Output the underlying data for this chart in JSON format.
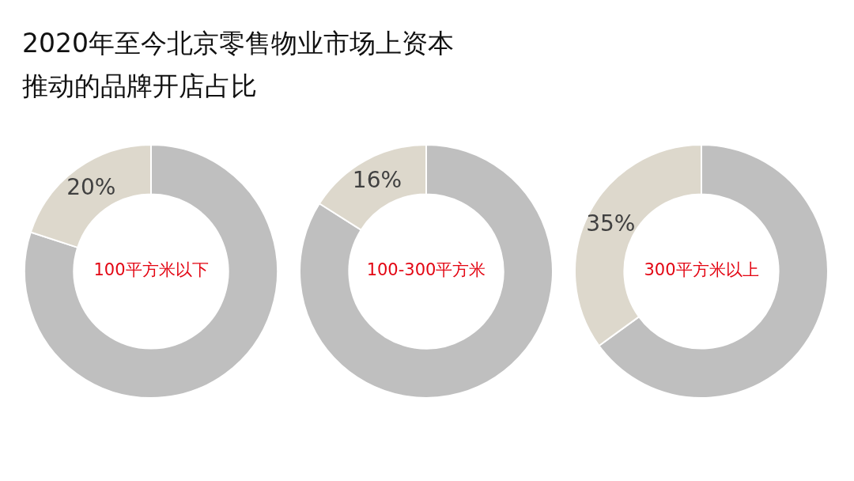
{
  "chart_data": [
    {
      "type": "other",
      "title": "2020年至今北京零售物业市场上资本推动的品牌开店占比"
    },
    {
      "type": "donut",
      "title": "100平方米以下",
      "categories": [
        null,
        null
      ],
      "values": [
        80,
        20
      ],
      "colors": [
        "#bfbfbf",
        "#ddd8cc"
      ],
      "value_labels": [
        null,
        "20%"
      ]
    },
    {
      "type": "donut",
      "title": "100-300平方米",
      "categories": [
        null,
        null
      ],
      "values": [
        84,
        16
      ],
      "colors": [
        "#bfbfbf",
        "#ddd8cc"
      ],
      "value_labels": [
        null,
        "16%"
      ]
    },
    {
      "type": "donut",
      "title": "300平方米以上",
      "categories": [
        null,
        null
      ],
      "values": [
        65,
        35
      ],
      "colors": [
        "#bfbfbf",
        "#ddd8cc"
      ],
      "value_labels": [
        null,
        "35%"
      ]
    }
  ]
}
